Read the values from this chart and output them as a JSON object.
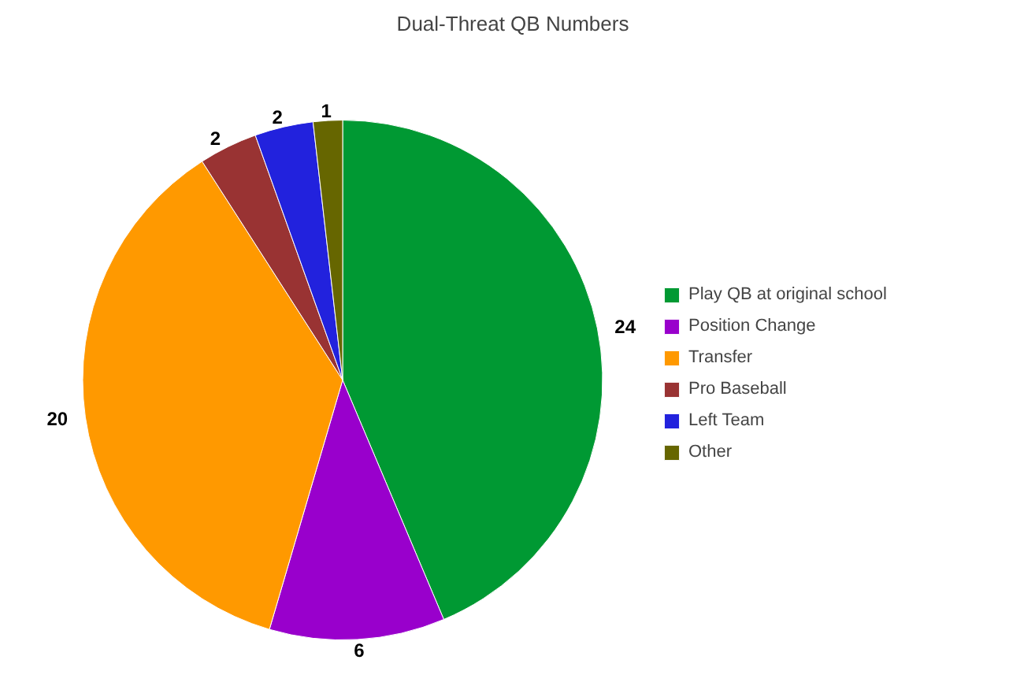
{
  "chart_data": {
    "type": "pie",
    "title": "Dual-Threat QB Numbers",
    "categories": [
      "Play QB at original school",
      "Position Change",
      "Transfer",
      "Pro Baseball",
      "Left Team",
      "Other"
    ],
    "values": [
      24,
      6,
      20,
      2,
      2,
      1
    ],
    "colors": [
      "#009933",
      "#9900cc",
      "#ff9900",
      "#993333",
      "#2222dd",
      "#666600"
    ],
    "data_labels": true,
    "legend": "right"
  }
}
